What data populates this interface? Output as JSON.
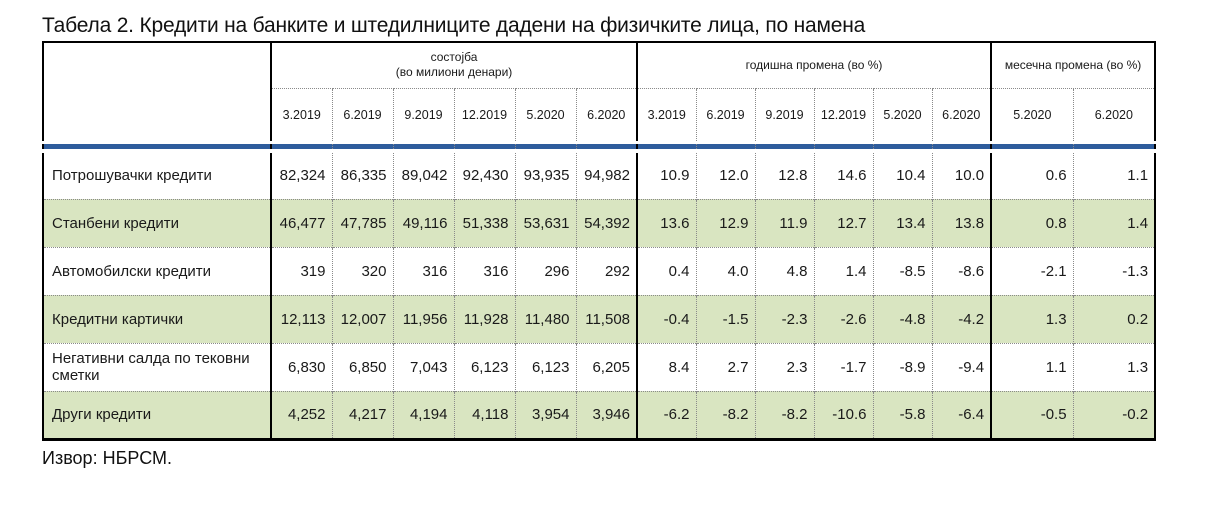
{
  "page": {
    "title": "Табела 2. Кредити на банките и штедилниците дадени на физичките лица, по намена",
    "source": "Извор: НБРСМ."
  },
  "table": {
    "column_groups": [
      {
        "label": "состојба",
        "sublabel": "(во милиони денари)",
        "span": 6
      },
      {
        "label": "годишна промена (во %)",
        "sublabel": "",
        "span": 6
      },
      {
        "label": "месечна промена (во %)",
        "sublabel": "",
        "span": 2
      }
    ],
    "date_headers": {
      "sostojba": [
        "3.2019",
        "6.2019",
        "9.2019",
        "12.2019",
        "5.2020",
        "6.2020"
      ],
      "godisna": [
        "3.2019",
        "6.2019",
        "9.2019",
        "12.2019",
        "5.2020",
        "6.2020"
      ],
      "mesecna": [
        "5.2020",
        "6.2020"
      ]
    },
    "rows": [
      {
        "label": "Потрошувачки кредити",
        "highlight": false,
        "values": [
          "82,324",
          "86,335",
          "89,042",
          "92,430",
          "93,935",
          "94,982",
          "10.9",
          "12.0",
          "12.8",
          "14.6",
          "10.4",
          "10.0",
          "0.6",
          "1.1"
        ]
      },
      {
        "label": "Станбени кредити",
        "highlight": true,
        "values": [
          "46,477",
          "47,785",
          "49,116",
          "51,338",
          "53,631",
          "54,392",
          "13.6",
          "12.9",
          "11.9",
          "12.7",
          "13.4",
          "13.8",
          "0.8",
          "1.4"
        ]
      },
      {
        "label": "Автомобилски кредити",
        "highlight": false,
        "values": [
          "319",
          "320",
          "316",
          "316",
          "296",
          "292",
          "0.4",
          "4.0",
          "4.8",
          "1.4",
          "-8.5",
          "-8.6",
          "-2.1",
          "-1.3"
        ]
      },
      {
        "label": "Кредитни картички",
        "highlight": true,
        "values": [
          "12,113",
          "12,007",
          "11,956",
          "11,928",
          "11,480",
          "11,508",
          "-0.4",
          "-1.5",
          "-2.3",
          "-2.6",
          "-4.8",
          "-4.2",
          "1.3",
          "0.2"
        ]
      },
      {
        "label": "Негативни салда по тековни сметки",
        "highlight": false,
        "values": [
          "6,830",
          "6,850",
          "7,043",
          "6,123",
          "6,123",
          "6,205",
          "8.4",
          "2.7",
          "2.3",
          "-1.7",
          "-8.9",
          "-9.4",
          "1.1",
          "1.3"
        ]
      },
      {
        "label": "Други кредити",
        "highlight": true,
        "values": [
          "4,252",
          "4,217",
          "4,194",
          "4,118",
          "3,954",
          "3,946",
          "-6.2",
          "-8.2",
          "-8.2",
          "-10.6",
          "-5.8",
          "-6.4",
          "-0.5",
          "-0.2"
        ]
      }
    ],
    "colors": {
      "highlight_row": "#d9e5c1",
      "separator_band": "#2e5c9c"
    }
  }
}
